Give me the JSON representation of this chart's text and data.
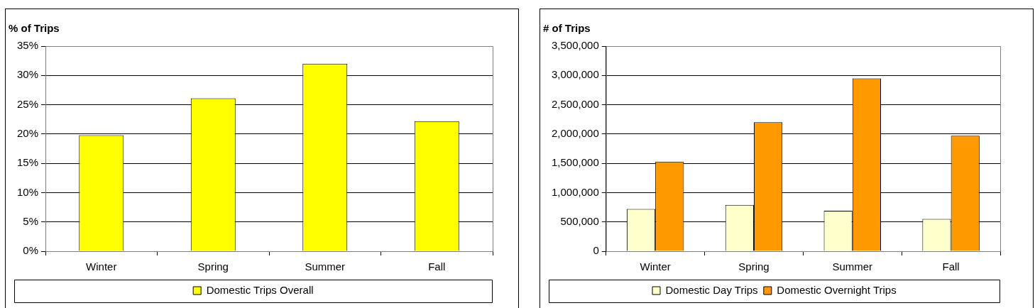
{
  "chart_data": [
    {
      "type": "bar",
      "ylabel": "% of Trips",
      "categories": [
        "Winter",
        "Spring",
        "Summer",
        "Fall"
      ],
      "series": [
        {
          "name": "Domestic Trips Overall",
          "color": "#ffff00",
          "values": [
            19.8,
            26.1,
            32.0,
            22.2
          ]
        }
      ],
      "ylim": [
        0,
        35
      ],
      "yticks": [
        {
          "value": 0,
          "label": "0%"
        },
        {
          "value": 5,
          "label": "5%"
        },
        {
          "value": 10,
          "label": "10%"
        },
        {
          "value": 15,
          "label": "15%"
        },
        {
          "value": 20,
          "label": "20%"
        },
        {
          "value": 25,
          "label": "25%"
        },
        {
          "value": 30,
          "label": "30%"
        },
        {
          "value": 35,
          "label": "35%"
        }
      ],
      "grid": "y",
      "legend": "bottom"
    },
    {
      "type": "bar",
      "ylabel": "# of Trips",
      "categories": [
        "Winter",
        "Spring",
        "Summer",
        "Fall"
      ],
      "series": [
        {
          "name": "Domestic Day Trips",
          "color": "#ffffcc",
          "values": [
            720000,
            790000,
            690000,
            550000
          ]
        },
        {
          "name": "Domestic Overnight Trips",
          "color": "#ff9900",
          "values": [
            1530000,
            2200000,
            2950000,
            1970000
          ]
        }
      ],
      "ylim": [
        0,
        3500000
      ],
      "yticks": [
        0,
        {
          "value": 500000,
          "label": "500,000"
        },
        {
          "value": 1000000,
          "label": "1,000,000"
        },
        {
          "value": 1500000,
          "label": "1,500,000"
        },
        {
          "value": 2000000,
          "label": "2,000,000"
        },
        {
          "value": 2500000,
          "label": "2,500,000"
        },
        {
          "value": 3000000,
          "label": "3,000,000"
        },
        {
          "value": 3500000,
          "label": "3,500,000"
        }
      ],
      "grid": "y",
      "legend": "bottom"
    }
  ]
}
